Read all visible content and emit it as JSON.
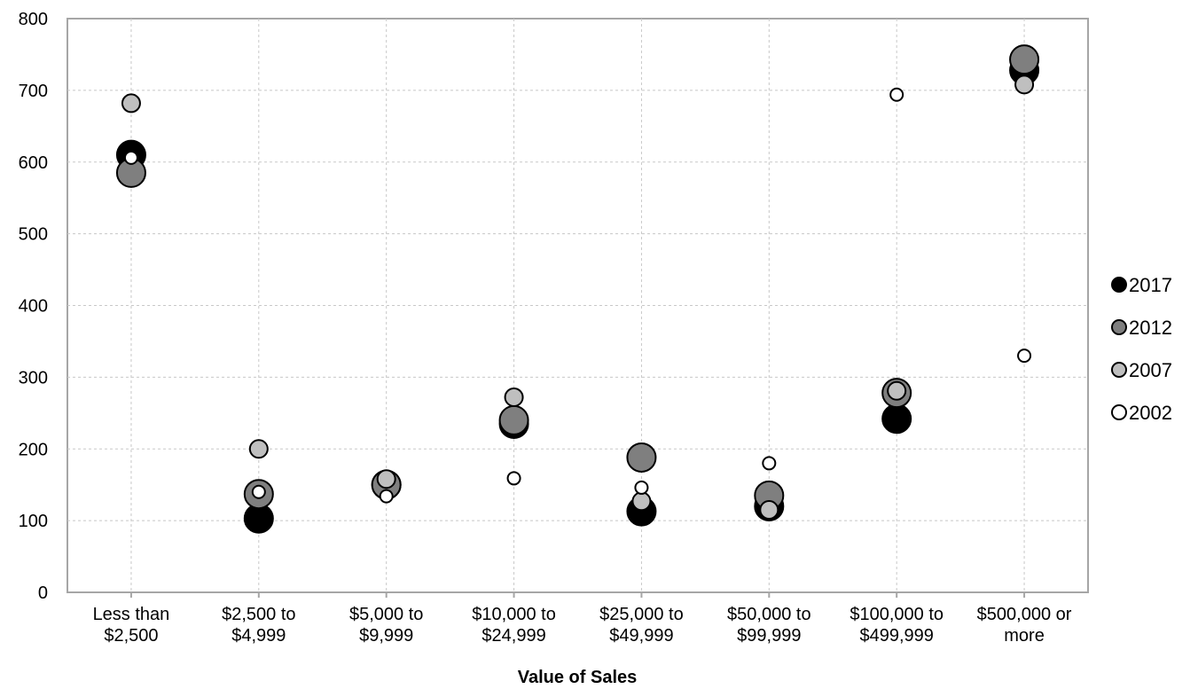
{
  "chart_data": {
    "type": "scatter",
    "title": "",
    "xlabel": "Value of Sales",
    "ylabel": "",
    "ylim": [
      0,
      800
    ],
    "yticks": [
      0,
      100,
      200,
      300,
      400,
      500,
      600,
      700,
      800
    ],
    "grid": true,
    "legend_position": "right",
    "categories": [
      [
        "Less than",
        "$2,500"
      ],
      [
        "$2,500 to",
        "$4,999"
      ],
      [
        "$5,000 to",
        "$9,999"
      ],
      [
        "$10,000 to",
        "$24,999"
      ],
      [
        "$25,000 to",
        "$49,999"
      ],
      [
        "$50,000 to",
        "$99,999"
      ],
      [
        "$100,000 to",
        "$499,999"
      ],
      [
        "$500,000 or",
        "more"
      ]
    ],
    "series": [
      {
        "name": "2017",
        "color": "#000000",
        "marker": "large",
        "values": [
          610,
          103,
          150,
          235,
          113,
          120,
          242,
          728
        ]
      },
      {
        "name": "2012",
        "color": "#7f7f7f",
        "marker": "large",
        "values": [
          585,
          137,
          150,
          240,
          188,
          135,
          278,
          743
        ]
      },
      {
        "name": "2007",
        "color": "#bfbfbf",
        "marker": "medium",
        "values": [
          682,
          200,
          158,
          272,
          127,
          115,
          281,
          708
        ]
      },
      {
        "name": "2002",
        "color": "#ffffff",
        "marker": "small",
        "values": [
          606,
          140,
          134,
          159,
          146,
          180,
          694,
          330
        ]
      }
    ]
  }
}
